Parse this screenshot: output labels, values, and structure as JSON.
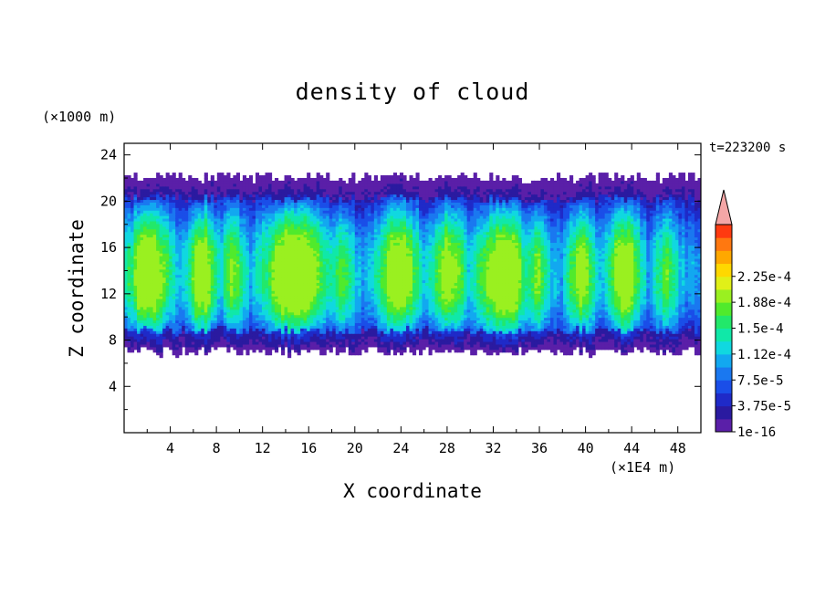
{
  "chart_data": {
    "type": "heatmap",
    "title": "density of cloud",
    "xlabel": "X coordinate",
    "ylabel": "Z coordinate",
    "x_unit": "(×1E4 m)",
    "y_unit": "(×1000 m)",
    "time_label": "t=223200 s",
    "xlim": [
      0,
      50
    ],
    "ylim": [
      0,
      25
    ],
    "x_ticks": [
      "4",
      "8",
      "12",
      "16",
      "20",
      "24",
      "28",
      "32",
      "36",
      "40",
      "44",
      "48"
    ],
    "y_ticks": [
      "4",
      "8",
      "12",
      "16",
      "20",
      "24"
    ],
    "colorbar": {
      "labels": [
        "1e-16",
        "3.75e-5",
        "7.5e-5",
        "1.12e-4",
        "1.5e-4",
        "1.88e-4",
        "2.25e-4"
      ],
      "colors": [
        "#5a1fa8",
        "#2a1aa0",
        "#1f2ac8",
        "#1a4ee8",
        "#1a78f0",
        "#12a8f0",
        "#10d8e0",
        "#10e8a8",
        "#22e86a",
        "#50ea2c",
        "#9af020",
        "#e0f018",
        "#ffd800",
        "#ffa800",
        "#ff7810",
        "#ff3a10"
      ],
      "extend_color": "#f4a6a6"
    }
  }
}
